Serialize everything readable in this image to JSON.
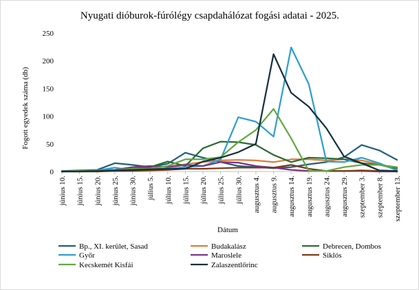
{
  "chart_data": {
    "type": "line",
    "title": "Nyugati dióburok-fúrólégy csapdahálózat fogási adatai - 2025.",
    "xlabel": "Dátum",
    "ylabel": "Fogott egyedek száma (db)",
    "ylim": [
      0,
      250
    ],
    "yticks": [
      0,
      50,
      100,
      150,
      200,
      250
    ],
    "grid": false,
    "legend_position": "bottom",
    "categories": [
      "június 10.",
      "június 15.",
      "június 20.",
      "június 25.",
      "június 30.",
      "július 5.",
      "július 10.",
      "július 15.",
      "július 20.",
      "július 25.",
      "július 30.",
      "augusztus 4.",
      "augusztus 9.",
      "augusztus 14.",
      "augusztus 19.",
      "augusztus 24.",
      "augusztus 29.",
      "szeptember 3.",
      "szeptember 8.",
      "szeptember 13."
    ],
    "series": [
      {
        "name": "Bp., XI. kerület, Sasad",
        "color": "#215f7f",
        "values": [
          1,
          2,
          3,
          15,
          12,
          8,
          14,
          34,
          25,
          17,
          10,
          8,
          6,
          8,
          13,
          17,
          26,
          48,
          38,
          21
        ]
      },
      {
        "name": "Budakalász",
        "color": "#e07b39",
        "values": [
          0,
          1,
          2,
          3,
          5,
          7,
          9,
          13,
          17,
          20,
          21,
          20,
          17,
          22,
          22,
          20,
          22,
          20,
          13,
          3
        ]
      },
      {
        "name": "Debrecen, Dombos",
        "color": "#2b6d32",
        "values": [
          0,
          1,
          2,
          3,
          5,
          8,
          18,
          10,
          42,
          54,
          53,
          48,
          30,
          17,
          25,
          24,
          22,
          15,
          12,
          6
        ]
      },
      {
        "name": "Győr",
        "color": "#2e9fd0",
        "values": [
          0,
          1,
          2,
          7,
          2,
          5,
          5,
          8,
          10,
          22,
          98,
          90,
          63,
          224,
          158,
          18,
          17,
          25,
          15,
          2
        ]
      },
      {
        "name": "Maroslele",
        "color": "#7a3585",
        "values": [
          0,
          1,
          2,
          3,
          8,
          10,
          8,
          12,
          10,
          17,
          16,
          10,
          7,
          3,
          1,
          1,
          1,
          1,
          0,
          0
        ]
      },
      {
        "name": "Siklós",
        "color": "#7b3a17",
        "values": [
          0,
          0,
          0,
          1,
          1,
          2,
          3,
          5,
          5,
          6,
          7,
          7,
          7,
          12,
          5,
          1,
          1,
          2,
          1,
          0
        ]
      },
      {
        "name": "Kecskemét Kisfái",
        "color": "#63a844",
        "values": [
          0,
          1,
          2,
          3,
          5,
          5,
          10,
          22,
          22,
          26,
          53,
          75,
          113,
          60,
          1,
          1,
          8,
          12,
          12,
          8
        ]
      },
      {
        "name": "Zalaszentlőrinc",
        "color": "#15303f",
        "values": [
          0,
          0,
          1,
          2,
          3,
          4,
          5,
          5,
          18,
          25,
          35,
          50,
          212,
          142,
          117,
          78,
          27,
          15,
          2,
          1
        ]
      }
    ]
  }
}
